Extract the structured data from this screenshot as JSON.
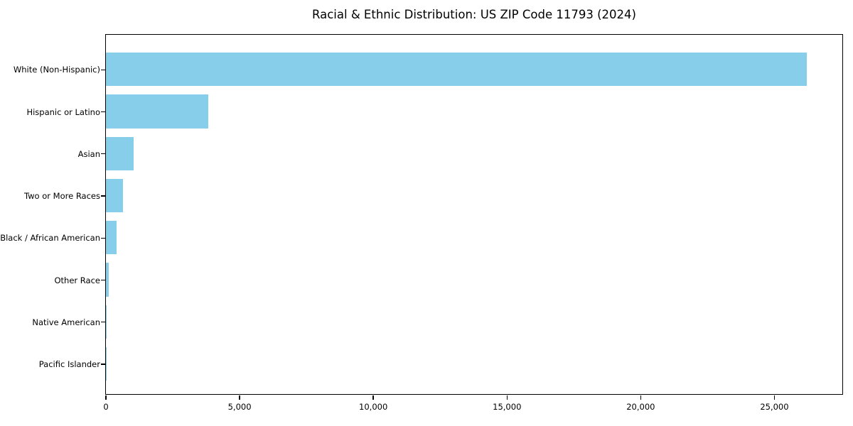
{
  "chart_data": {
    "type": "bar",
    "orientation": "horizontal",
    "title": "Racial & Ethnic Distribution: US ZIP Code 11793 (2024)",
    "categories": [
      "White (Non-Hispanic)",
      "Hispanic or Latino",
      "Asian",
      "Two or More Races",
      "Black / African American",
      "Other Race",
      "Native American",
      "Pacific Islander"
    ],
    "values": [
      26230,
      3835,
      1045,
      645,
      425,
      115,
      30,
      5
    ],
    "xlabel": "",
    "ylabel": "",
    "xlim": [
      0,
      27540
    ],
    "x_ticks": [
      0,
      5000,
      10000,
      15000,
      20000,
      25000
    ],
    "x_tick_labels": [
      "0",
      "5,000",
      "10,000",
      "15,000",
      "20,000",
      "25,000"
    ],
    "grid": false,
    "legend": false,
    "bar_color": "#87CEEB",
    "axis_color": "#000000",
    "text_color": "#000000",
    "background_color": "#FFFFFF"
  }
}
